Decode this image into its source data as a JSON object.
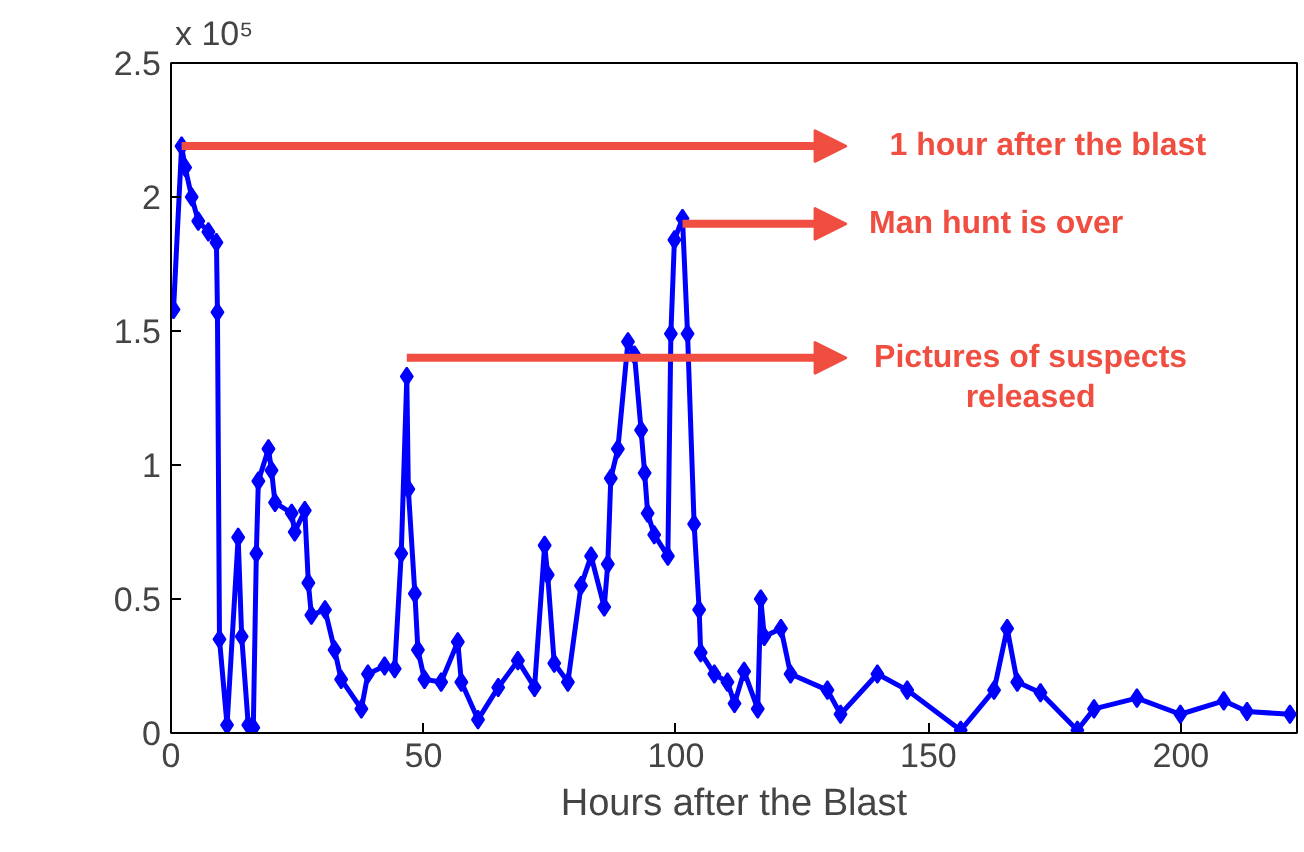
{
  "chart_data": {
    "type": "line",
    "xlabel": "Hours after the Blast",
    "x": [
      0.5,
      2.1,
      2.8,
      4.1,
      5.4,
      7.4,
      9.0,
      9.2,
      9.6,
      11.1,
      13.3,
      14.0,
      15.3,
      16.3,
      16.9,
      17.3,
      19.3,
      19.9,
      20.6,
      23.9,
      24.5,
      26.5,
      27.2,
      27.8,
      30.5,
      32.4,
      33.7,
      37.7,
      39.0,
      42.3,
      44.3,
      45.6,
      46.7,
      47.0,
      48.3,
      48.9,
      50.2,
      53.5,
      56.8,
      57.5,
      60.8,
      64.8,
      68.7,
      72.0,
      74.0,
      74.6,
      75.9,
      78.6,
      81.2,
      83.2,
      85.8,
      86.5,
      87.1,
      88.5,
      90.5,
      91.8,
      93.1,
      93.8,
      94.4,
      95.7,
      98.4,
      99.0,
      99.7,
      101.3,
      102.3,
      103.6,
      104.6,
      104.9,
      107.6,
      110.2,
      111.6,
      113.5,
      116.2,
      116.8,
      117.5,
      120.8,
      122.7,
      130.0,
      132.6,
      139.9,
      145.8,
      156.4,
      163.0,
      165.6,
      167.6,
      172.2,
      179.5,
      182.8,
      191.3,
      199.9,
      208.5,
      213.1,
      221.6
    ],
    "series": [
      {
        "color": "#0000ff",
        "values": [
          1.58,
          2.19,
          2.11,
          2.0,
          1.91,
          1.87,
          1.83,
          1.57,
          0.35,
          0.03,
          0.73,
          0.36,
          0.03,
          0.02,
          0.67,
          0.94,
          1.06,
          0.98,
          0.86,
          0.82,
          0.75,
          0.83,
          0.56,
          0.44,
          0.46,
          0.31,
          0.2,
          0.09,
          0.22,
          0.25,
          0.24,
          0.67,
          1.33,
          0.91,
          0.52,
          0.31,
          0.2,
          0.19,
          0.34,
          0.19,
          0.05,
          0.17,
          0.27,
          0.17,
          0.7,
          0.59,
          0.26,
          0.19,
          0.55,
          0.66,
          0.47,
          0.63,
          0.95,
          1.06,
          1.46,
          1.41,
          1.13,
          0.97,
          0.82,
          0.74,
          0.66,
          1.49,
          1.84,
          1.92,
          1.49,
          0.78,
          0.46,
          0.3,
          0.22,
          0.19,
          0.11,
          0.23,
          0.09,
          0.5,
          0.36,
          0.39,
          0.22,
          0.16,
          0.07,
          0.22,
          0.16,
          0.01,
          0.16,
          0.39,
          0.19,
          0.15,
          0.01,
          0.09,
          0.13,
          0.07,
          0.12,
          0.08,
          0.07
        ]
      }
    ],
    "xlim": [
      0,
      223
    ],
    "ylim": [
      0,
      2.5
    ],
    "xticks": [
      0,
      50,
      100,
      150,
      200
    ],
    "yticks": [
      0,
      0.5,
      1,
      1.5,
      2,
      2.5
    ],
    "marker": "diamond",
    "line_style": "solid",
    "annotations": [
      "x 10⁵",
      "1 hour after the blast",
      {
        "text": "Man hunt is over",
        "x": 101.3,
        "y": 1.9
      },
      {
        "text": "Pictures of suspects\nreleased",
        "x": 46.7,
        "y": 1.4
      }
    ]
  }
}
